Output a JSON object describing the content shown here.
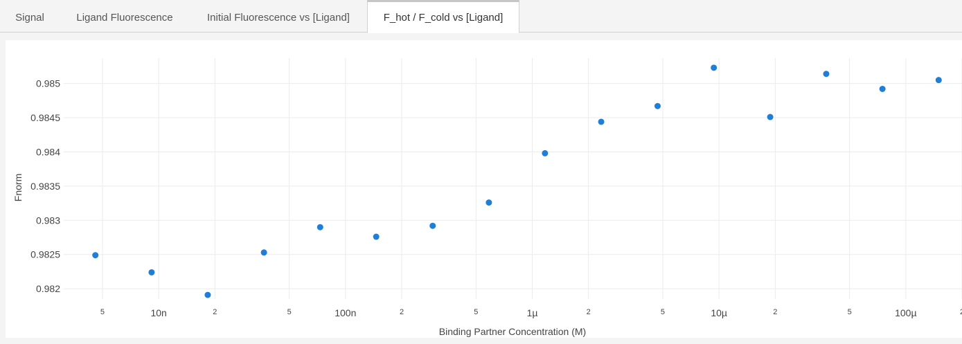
{
  "tabs": [
    {
      "label": "Signal",
      "active": false
    },
    {
      "label": "Ligand Fluorescence",
      "active": false
    },
    {
      "label": "Initial Fluorescence vs [Ligand]",
      "active": false
    },
    {
      "label": "F_hot / F_cold vs [Ligand]",
      "active": true
    }
  ],
  "chart_data": {
    "type": "scatter",
    "title": "",
    "xlabel": "Binding Partner Concentration (M)",
    "ylabel": "Fnorm",
    "x_scale": "log",
    "xlim": [
      3.1e-09,
      0.0002
    ],
    "ylim": [
      0.98185,
      0.98537
    ],
    "grid": true,
    "marker_color": "#1f7fd6",
    "x_ticks": [
      {
        "value": 5e-09,
        "label": "5"
      },
      {
        "value": 1e-08,
        "label": "10n"
      },
      {
        "value": 2e-08,
        "label": "2"
      },
      {
        "value": 5e-08,
        "label": "5"
      },
      {
        "value": 1e-07,
        "label": "100n"
      },
      {
        "value": 2e-07,
        "label": "2"
      },
      {
        "value": 5e-07,
        "label": "5"
      },
      {
        "value": 1e-06,
        "label": "1µ"
      },
      {
        "value": 2e-06,
        "label": "2"
      },
      {
        "value": 5e-06,
        "label": "5"
      },
      {
        "value": 1e-05,
        "label": "10µ"
      },
      {
        "value": 2e-05,
        "label": "2"
      },
      {
        "value": 5e-05,
        "label": "5"
      },
      {
        "value": 0.0001,
        "label": "100µ"
      },
      {
        "value": 0.0002,
        "label": "2"
      }
    ],
    "y_ticks": [
      {
        "value": 0.982,
        "label": "0.982"
      },
      {
        "value": 0.9825,
        "label": "0.9825"
      },
      {
        "value": 0.983,
        "label": "0.983"
      },
      {
        "value": 0.9835,
        "label": "0.9835"
      },
      {
        "value": 0.984,
        "label": "0.984"
      },
      {
        "value": 0.9845,
        "label": "0.9845"
      },
      {
        "value": 0.985,
        "label": "0.985"
      }
    ],
    "series": [
      {
        "points": [
          {
            "x": 4.58e-09,
            "y": 0.98249
          },
          {
            "x": 9.16e-09,
            "y": 0.98224
          },
          {
            "x": 1.83e-08,
            "y": 0.98191
          },
          {
            "x": 3.66e-08,
            "y": 0.98253
          },
          {
            "x": 7.32e-08,
            "y": 0.9829
          },
          {
            "x": 1.46e-07,
            "y": 0.98276
          },
          {
            "x": 2.93e-07,
            "y": 0.98292
          },
          {
            "x": 5.86e-07,
            "y": 0.98326
          },
          {
            "x": 1.17e-06,
            "y": 0.98398
          },
          {
            "x": 2.34e-06,
            "y": 0.98444
          },
          {
            "x": 4.69e-06,
            "y": 0.98467
          },
          {
            "x": 9.38e-06,
            "y": 0.98523
          },
          {
            "x": 1.88e-05,
            "y": 0.98451
          },
          {
            "x": 3.75e-05,
            "y": 0.98514
          },
          {
            "x": 7.5e-05,
            "y": 0.98492
          },
          {
            "x": 0.00015,
            "y": 0.98505
          }
        ]
      }
    ]
  }
}
